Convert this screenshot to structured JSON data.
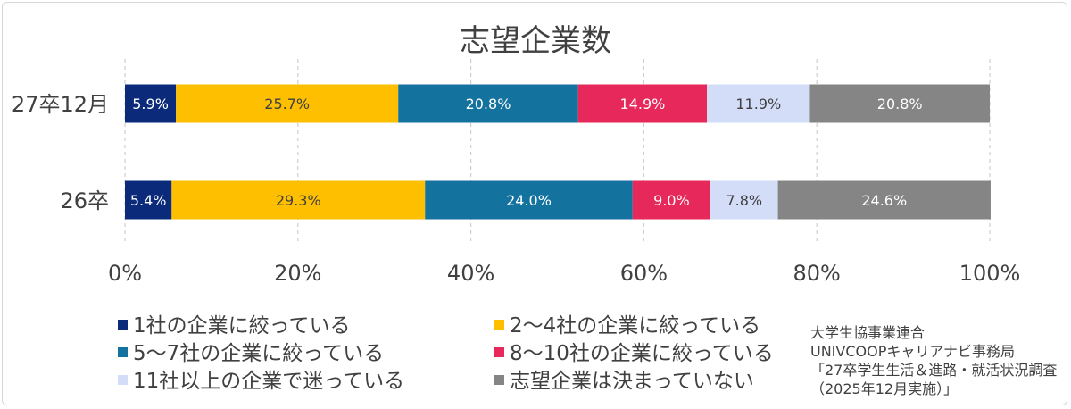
{
  "chart_data": {
    "type": "bar",
    "orientation": "horizontal",
    "stacked": "percent",
    "title": "志望企業数",
    "categories": [
      "27卒12月",
      "26卒"
    ],
    "x_ticks": [
      "0%",
      "20%",
      "40%",
      "60%",
      "80%",
      "100%"
    ],
    "xlim": [
      0,
      100
    ],
    "grid": "vertical dashed",
    "legend_position": "bottom",
    "series": [
      {
        "name": "1社の企業に絞っている",
        "values": [
          5.9,
          5.4
        ],
        "labels": [
          "5.9%",
          "5.4%"
        ],
        "color": "#0b2a7a",
        "label_color": "#ffffff"
      },
      {
        "name": "2～4社の企業に絞っている",
        "values": [
          25.7,
          29.3
        ],
        "labels": [
          "25.7%",
          "29.3%"
        ],
        "color": "#fdbf00",
        "label_color": "#404040"
      },
      {
        "name": "5～7社の企業に絞っている",
        "values": [
          20.8,
          24.0
        ],
        "labels": [
          "20.8%",
          "24.0%"
        ],
        "color": "#14729f",
        "label_color": "#ffffff"
      },
      {
        "name": "8～10社の企業に絞っている",
        "values": [
          14.9,
          9.0
        ],
        "labels": [
          "14.9%",
          "9.0%"
        ],
        "color": "#e6285a",
        "label_color": "#ffffff"
      },
      {
        "name": "11社以上の企業で迷っている",
        "values": [
          11.9,
          7.8
        ],
        "labels": [
          "11.9%",
          "7.8%"
        ],
        "color": "#d3ddf8",
        "label_color": "#404040"
      },
      {
        "name": "志望企業は決まっていない",
        "values": [
          20.8,
          24.6
        ],
        "labels": [
          "20.8%",
          "24.6%"
        ],
        "color": "#858585",
        "label_color": "#ffffff"
      }
    ]
  },
  "source": {
    "lines": [
      "大学生協事業連合",
      "UNIVCOOPキャリアナビ事務局",
      "「27卒学生生活＆進路・就活状況調査",
      "（2025年12月実施）」"
    ]
  }
}
